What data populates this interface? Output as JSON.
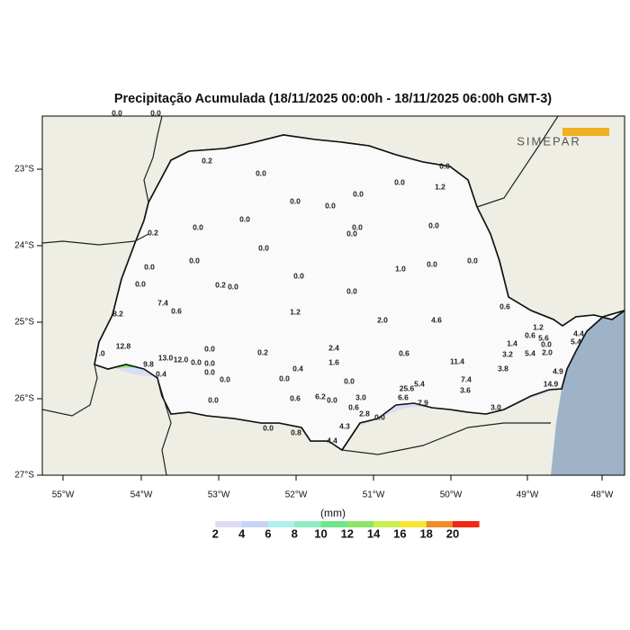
{
  "title": "Precipitação Acumulada (18/11/2025 00:00h - 18/11/2025 06:00h GMT-3)",
  "logo": "SIMEPAR",
  "lon_labels": [
    "55°W",
    "54°W",
    "53°W",
    "52°W",
    "51°W",
    "50°W",
    "49°W",
    "48°W"
  ],
  "lat_labels": [
    "23°S",
    "24°S",
    "25°S",
    "26°S",
    "27°S"
  ],
  "stations": [
    "0.0",
    "0.0",
    "0.2",
    "0.0",
    "0.0",
    "0.0",
    "1.2",
    "0.0",
    "0.0",
    "0.0",
    "0.0",
    "0.0",
    "0.2",
    "0.0",
    "0.0",
    "0.0",
    "0.0",
    "0.0",
    "0.0",
    "0.0",
    "0.0",
    "1.0",
    "0.0",
    "0.0",
    "0.2",
    "0.0",
    "0.0",
    "7.4",
    "8.2",
    "0.6",
    "1.2",
    "0.6",
    "2.0",
    "4.6",
    "12.8",
    ".0",
    "13.0",
    "12.0",
    "0.0",
    "0.0",
    "9.8",
    "0.4",
    "0.0",
    "0.0",
    "0.2",
    "2.4",
    "1.6",
    "0.6",
    "11.4",
    "3.8",
    "0.4",
    "0.0",
    "0.0",
    "0.0",
    "0.0",
    "7.4",
    "3.6",
    "1.4",
    "3.2",
    "5.4",
    "0.0",
    "5.6",
    "1.2",
    "0.6",
    "2.0",
    "4.4",
    "5.4",
    "14.9",
    "4.9",
    "3.0",
    "6.2",
    "0.0",
    "0.6",
    "25.6",
    "5.4",
    "6.6",
    "7.9",
    "0.6",
    "2.8",
    "0.0",
    "4.3",
    "3.0",
    "0.0",
    "0.8",
    "4.4"
  ],
  "colorbar": {
    "unit": "(mm)",
    "labels": [
      2,
      4,
      6,
      8,
      10,
      12,
      14,
      16,
      18,
      20
    ],
    "colors": [
      "#ffffff",
      "#dcdcf5",
      "#c8d4f5",
      "#aef0f0",
      "#8eecc4",
      "#6ee68a",
      "#8ce66a",
      "#c8f050",
      "#f5e632",
      "#f08c28",
      "#f02814"
    ]
  }
}
